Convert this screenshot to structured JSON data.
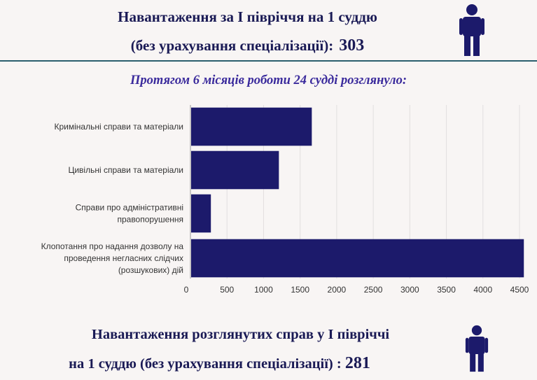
{
  "header": {
    "line1": "Навантаження за І півріччя на 1 суддю",
    "line2": "(без урахування спеціалізації):",
    "value": "303"
  },
  "subtitle": "Протягом 6 місяців роботи 24 судді розглянуло:",
  "footer": {
    "line1": "Навантаження розглянутих справ у І півріччі",
    "line2": "на 1 суддю (без урахування спеціалізації) :",
    "value": "281"
  },
  "icons": [
    "person-icon",
    "person-icon"
  ],
  "colors": {
    "bar": "#1c1a6b",
    "title": "#1a1a55",
    "subtitle": "#3a2a9c",
    "divider": "#2b5f6e"
  },
  "chart_data": {
    "type": "bar",
    "orientation": "horizontal",
    "categories": [
      "Кримінальні справи та матеріали",
      "Цивільні справи та матеріали",
      "Справи про адміністративні правопорушення",
      "Клопотання про надання дозволу на проведення негласних слідчих (розшукових) дій"
    ],
    "category_lines": [
      [
        "Кримінальні справи та матеріали"
      ],
      [
        "Цивільні справи та матеріали"
      ],
      [
        "Справи про адміністративні",
        "правопорушення"
      ],
      [
        "Клопотання про надання дозволу на",
        "проведення негласних слідчих",
        "(розшукових) дій"
      ]
    ],
    "values": [
      1650,
      1200,
      270,
      4550
    ],
    "xlim": [
      0,
      4500
    ],
    "xticks": [
      "0",
      "500",
      "1000",
      "1500",
      "2000",
      "2500",
      "3000",
      "3500",
      "4000",
      "4500"
    ],
    "grid": true
  }
}
